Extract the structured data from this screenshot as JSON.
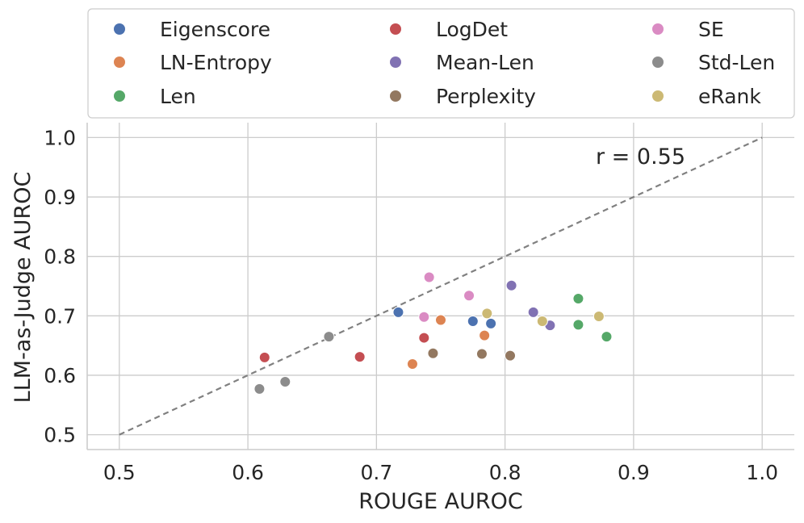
{
  "chart_data": {
    "type": "scatter",
    "xlabel": "ROUGE AUROC",
    "ylabel": "LLM-as-Judge AUROC",
    "xlim": [
      0.475,
      1.025
    ],
    "ylim": [
      0.475,
      1.025
    ],
    "x_ticks": [
      0.5,
      0.6,
      0.7,
      0.8,
      0.9,
      1.0
    ],
    "y_ticks": [
      0.5,
      0.6,
      0.7,
      0.8,
      0.9,
      1.0
    ],
    "x_tick_labels": [
      "0.5",
      "0.6",
      "0.7",
      "0.8",
      "0.9",
      "1.0"
    ],
    "y_tick_labels": [
      "0.5",
      "0.6",
      "0.7",
      "0.8",
      "0.9",
      "1.0"
    ],
    "grid": true,
    "reference_line": {
      "from": [
        0.5,
        0.5
      ],
      "to": [
        1.0,
        1.0
      ],
      "style": "dashed",
      "color": "#808080"
    },
    "annotation": "r = 0.55",
    "legend_position": "top",
    "series": [
      {
        "name": "Eigenscore",
        "color": "#4c72b0",
        "points": [
          [
            0.717,
            0.706
          ],
          [
            0.775,
            0.691
          ],
          [
            0.789,
            0.687
          ]
        ]
      },
      {
        "name": "LN-Entropy",
        "color": "#dd8452",
        "points": [
          [
            0.728,
            0.619
          ],
          [
            0.75,
            0.693
          ],
          [
            0.784,
            0.667
          ]
        ]
      },
      {
        "name": "Len",
        "color": "#55a868",
        "points": [
          [
            0.857,
            0.729
          ],
          [
            0.857,
            0.685
          ],
          [
            0.879,
            0.665
          ]
        ]
      },
      {
        "name": "LogDet",
        "color": "#c44e52",
        "points": [
          [
            0.613,
            0.63
          ],
          [
            0.687,
            0.631
          ],
          [
            0.737,
            0.663
          ]
        ]
      },
      {
        "name": "Mean-Len",
        "color": "#8172b3",
        "points": [
          [
            0.805,
            0.751
          ],
          [
            0.822,
            0.706
          ],
          [
            0.835,
            0.684
          ]
        ]
      },
      {
        "name": "Perplexity",
        "color": "#937860",
        "points": [
          [
            0.744,
            0.637
          ],
          [
            0.782,
            0.636
          ],
          [
            0.804,
            0.633
          ]
        ]
      },
      {
        "name": "SE",
        "color": "#da8bc3",
        "points": [
          [
            0.741,
            0.765
          ],
          [
            0.737,
            0.698
          ],
          [
            0.772,
            0.734
          ]
        ]
      },
      {
        "name": "Std-Len",
        "color": "#8c8c8c",
        "points": [
          [
            0.609,
            0.577
          ],
          [
            0.629,
            0.589
          ],
          [
            0.663,
            0.665
          ]
        ]
      },
      {
        "name": "eRank",
        "color": "#ccb974",
        "points": [
          [
            0.786,
            0.704
          ],
          [
            0.829,
            0.691
          ],
          [
            0.873,
            0.699
          ]
        ]
      }
    ]
  }
}
